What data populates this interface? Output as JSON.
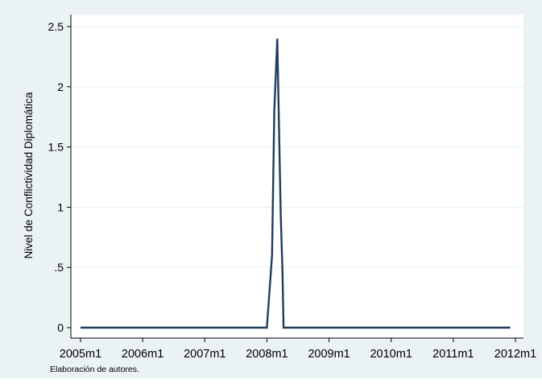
{
  "chart_data": {
    "type": "line",
    "ylabel": "Nivel de Conflictividad Diplomática",
    "xlabel": "",
    "note": "Elaboración de autores.",
    "ylim": [
      0,
      2.5
    ],
    "xlim": [
      "2005m1",
      "2011m12"
    ],
    "x_ticks": [
      "2005m1",
      "2006m1",
      "2007m1",
      "2008m1",
      "2009m1",
      "2010m1",
      "2011m1",
      "2012m1"
    ],
    "y_ticks": [
      "0",
      ".5",
      "1",
      "1.5",
      "2",
      "2.5"
    ],
    "y_tick_values": [
      0,
      0.5,
      1,
      1.5,
      2,
      2.5
    ],
    "grid": true,
    "colors": {
      "line": "#1f3d5c",
      "outer_background": "#eaf2f3",
      "plot_background": "#ffffff",
      "grid": "#eaf2f3"
    },
    "series": [
      {
        "points": [
          [
            "2005m1",
            0
          ],
          [
            "2008m1",
            0
          ],
          [
            "2008m2",
            0.6
          ],
          [
            "2008m2",
            1.2
          ],
          [
            "2008m2",
            1.8
          ],
          [
            "2008m3",
            2.4
          ],
          [
            "2008m3",
            1.92
          ],
          [
            "2008m3",
            1.44
          ],
          [
            "2008m3",
            0.96
          ],
          [
            "2008m4",
            0.48
          ],
          [
            "2008m4",
            0
          ],
          [
            "2011m12",
            0
          ]
        ]
      }
    ]
  }
}
